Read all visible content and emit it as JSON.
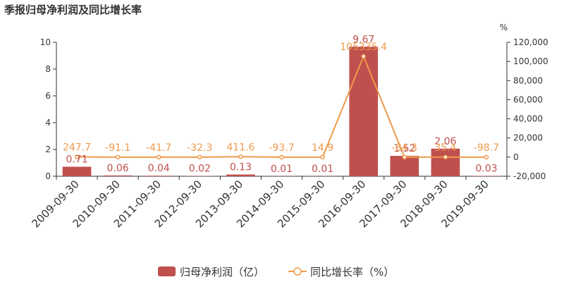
{
  "chart_data": {
    "type": "bar",
    "title": "季报归母净利润及同比增长率",
    "categories": [
      "2009-09-30",
      "2010-09-30",
      "2011-09-30",
      "2012-09-30",
      "2013-09-30",
      "2014-09-30",
      "2015-09-30",
      "2016-09-30",
      "2017-09-30",
      "2018-09-30",
      "2019-09-30"
    ],
    "series": [
      {
        "name": "归母净利润（亿）",
        "type": "bar",
        "axis": "left",
        "values": [
          0.71,
          0.06,
          0.04,
          0.02,
          0.13,
          0.01,
          0.01,
          9.67,
          1.52,
          2.06,
          0.03
        ],
        "labels": [
          "0.71",
          "0.06",
          "0.04",
          "0.02",
          "0.13",
          "0.01",
          "0.01",
          "9.67",
          "1.52",
          "2.06",
          "0.03"
        ],
        "color": "#c0504d"
      },
      {
        "name": "同比增长率（%）",
        "type": "line",
        "axis": "right",
        "values": [
          247.7,
          -91.1,
          -41.7,
          -32.3,
          411.6,
          -93.7,
          14.9,
          105335.4,
          -84.3,
          35.4,
          -98.7
        ],
        "labels": [
          "247.7",
          "-91.1",
          "-41.7",
          "-32.3",
          "411.6",
          "-93.7",
          "14.9",
          "105335.4",
          "-84.3",
          "35.4",
          "-98.7"
        ],
        "color": "#ee9a4d"
      }
    ],
    "y_left": {
      "ylim": [
        0,
        10
      ],
      "ticks": [
        "0",
        "2",
        "4",
        "6",
        "8",
        "10"
      ]
    },
    "y_right": {
      "unit": "%",
      "ylim": [
        -20000,
        120000
      ],
      "ticks": [
        "-20,000",
        "0",
        "20,000",
        "40,000",
        "60,000",
        "80,000",
        "100,000",
        "120,000"
      ]
    },
    "grid": false,
    "legend": "bottom-center"
  }
}
